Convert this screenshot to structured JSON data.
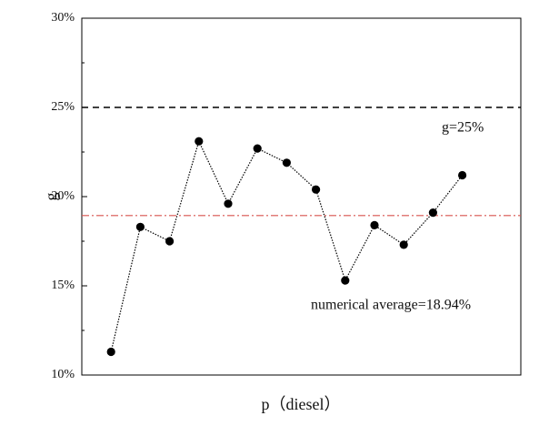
{
  "chart_data": {
    "type": "line",
    "title": "",
    "xlabel": "p（diesel）",
    "ylabel": "g",
    "ylim": [
      10,
      30
    ],
    "ytick_values": [
      10,
      15,
      20,
      25,
      30
    ],
    "ytick_labels": [
      "10%",
      "15%",
      "20%",
      "25%",
      "30%"
    ],
    "x": [
      1,
      2,
      3,
      4,
      5,
      6,
      7,
      8,
      9,
      10,
      11,
      12,
      13
    ],
    "xlim": [
      0,
      15
    ],
    "series": [
      {
        "values": [
          11.3,
          18.3,
          17.5,
          23.1,
          19.6,
          22.7,
          21.9,
          20.4,
          15.3,
          18.4,
          17.3,
          19.1,
          21.2
        ]
      }
    ],
    "reference_lines": [
      {
        "value": 25,
        "label": "g=25%",
        "style": "dashed",
        "color": "#000000"
      },
      {
        "value": 18.94,
        "label": "numerical average=18.94%",
        "style": "dash-dot",
        "color": "#d9534f"
      }
    ],
    "grid": false,
    "legend": "none"
  }
}
